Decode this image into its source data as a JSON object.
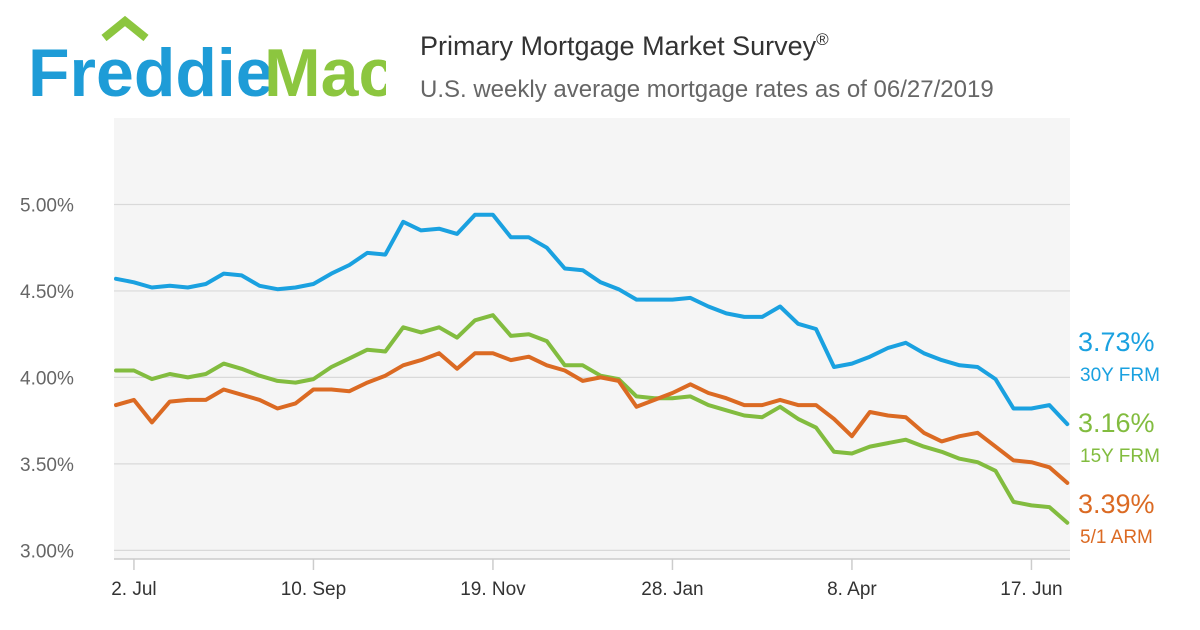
{
  "brand": {
    "word1": "Freddie",
    "word2": "Mac",
    "blue": "#1e9cd7",
    "green": "#8cc63f"
  },
  "header": {
    "title": "Primary Mortgage Market Survey",
    "title_mark": "®",
    "subtitle": "U.S. weekly average mortgage rates as of 06/27/2019"
  },
  "chart_data": {
    "type": "line",
    "title": "Primary Mortgage Market Survey",
    "subtitle": "U.S. weekly average mortgage rates as of 06/27/2019",
    "xlabel": "",
    "ylabel": "",
    "ylim": [
      2.95,
      5.5
    ],
    "y_ticks": [
      3.0,
      3.5,
      4.0,
      4.5,
      5.0
    ],
    "y_tick_labels": [
      "3.00%",
      "3.50%",
      "4.00%",
      "4.50%",
      "5.00%"
    ],
    "x_ticks": [
      {
        "index": 1,
        "label": "2. Jul"
      },
      {
        "index": 11,
        "label": "10. Sep"
      },
      {
        "index": 21,
        "label": "19. Nov"
      },
      {
        "index": 31,
        "label": "28. Jan"
      },
      {
        "index": 41,
        "label": "8. Apr"
      },
      {
        "index": 51,
        "label": "17. Jun"
      }
    ],
    "grid": true,
    "series": [
      {
        "name": "30Y FRM",
        "end_label": "3.73%",
        "color": "#1aa1e0",
        "values": [
          4.57,
          4.55,
          4.52,
          4.53,
          4.52,
          4.54,
          4.6,
          4.59,
          4.53,
          4.51,
          4.52,
          4.54,
          4.6,
          4.65,
          4.72,
          4.71,
          4.9,
          4.85,
          4.86,
          4.83,
          4.94,
          4.94,
          4.81,
          4.81,
          4.75,
          4.63,
          4.62,
          4.55,
          4.51,
          4.45,
          4.45,
          4.45,
          4.46,
          4.41,
          4.37,
          4.35,
          4.35,
          4.41,
          4.31,
          4.28,
          4.06,
          4.08,
          4.12,
          4.17,
          4.2,
          4.14,
          4.1,
          4.07,
          4.06,
          3.99,
          3.82,
          3.82,
          3.84,
          3.73
        ]
      },
      {
        "name": "15Y FRM",
        "end_label": "3.16%",
        "color": "#82bc3f",
        "values": [
          4.04,
          4.04,
          3.99,
          4.02,
          4.0,
          4.02,
          4.08,
          4.05,
          4.01,
          3.98,
          3.97,
          3.99,
          4.06,
          4.11,
          4.16,
          4.15,
          4.29,
          4.26,
          4.29,
          4.23,
          4.33,
          4.36,
          4.24,
          4.25,
          4.21,
          4.07,
          4.07,
          4.01,
          3.99,
          3.89,
          3.88,
          3.88,
          3.89,
          3.84,
          3.81,
          3.78,
          3.77,
          3.83,
          3.76,
          3.71,
          3.57,
          3.56,
          3.6,
          3.62,
          3.64,
          3.6,
          3.57,
          3.53,
          3.51,
          3.46,
          3.28,
          3.26,
          3.25,
          3.16
        ]
      },
      {
        "name": "5/1 ARM",
        "end_label": "3.39%",
        "color": "#db6a23",
        "values": [
          3.84,
          3.87,
          3.74,
          3.86,
          3.87,
          3.87,
          3.93,
          3.9,
          3.87,
          3.82,
          3.85,
          3.93,
          3.93,
          3.92,
          3.97,
          4.01,
          4.07,
          4.1,
          4.14,
          4.05,
          4.14,
          4.14,
          4.1,
          4.12,
          4.07,
          4.04,
          3.98,
          4.0,
          3.98,
          3.83,
          3.87,
          3.91,
          3.96,
          3.91,
          3.88,
          3.84,
          3.84,
          3.87,
          3.84,
          3.84,
          3.76,
          3.66,
          3.8,
          3.78,
          3.77,
          3.68,
          3.63,
          3.66,
          3.68,
          3.6,
          3.52,
          3.51,
          3.48,
          3.39
        ]
      }
    ]
  }
}
